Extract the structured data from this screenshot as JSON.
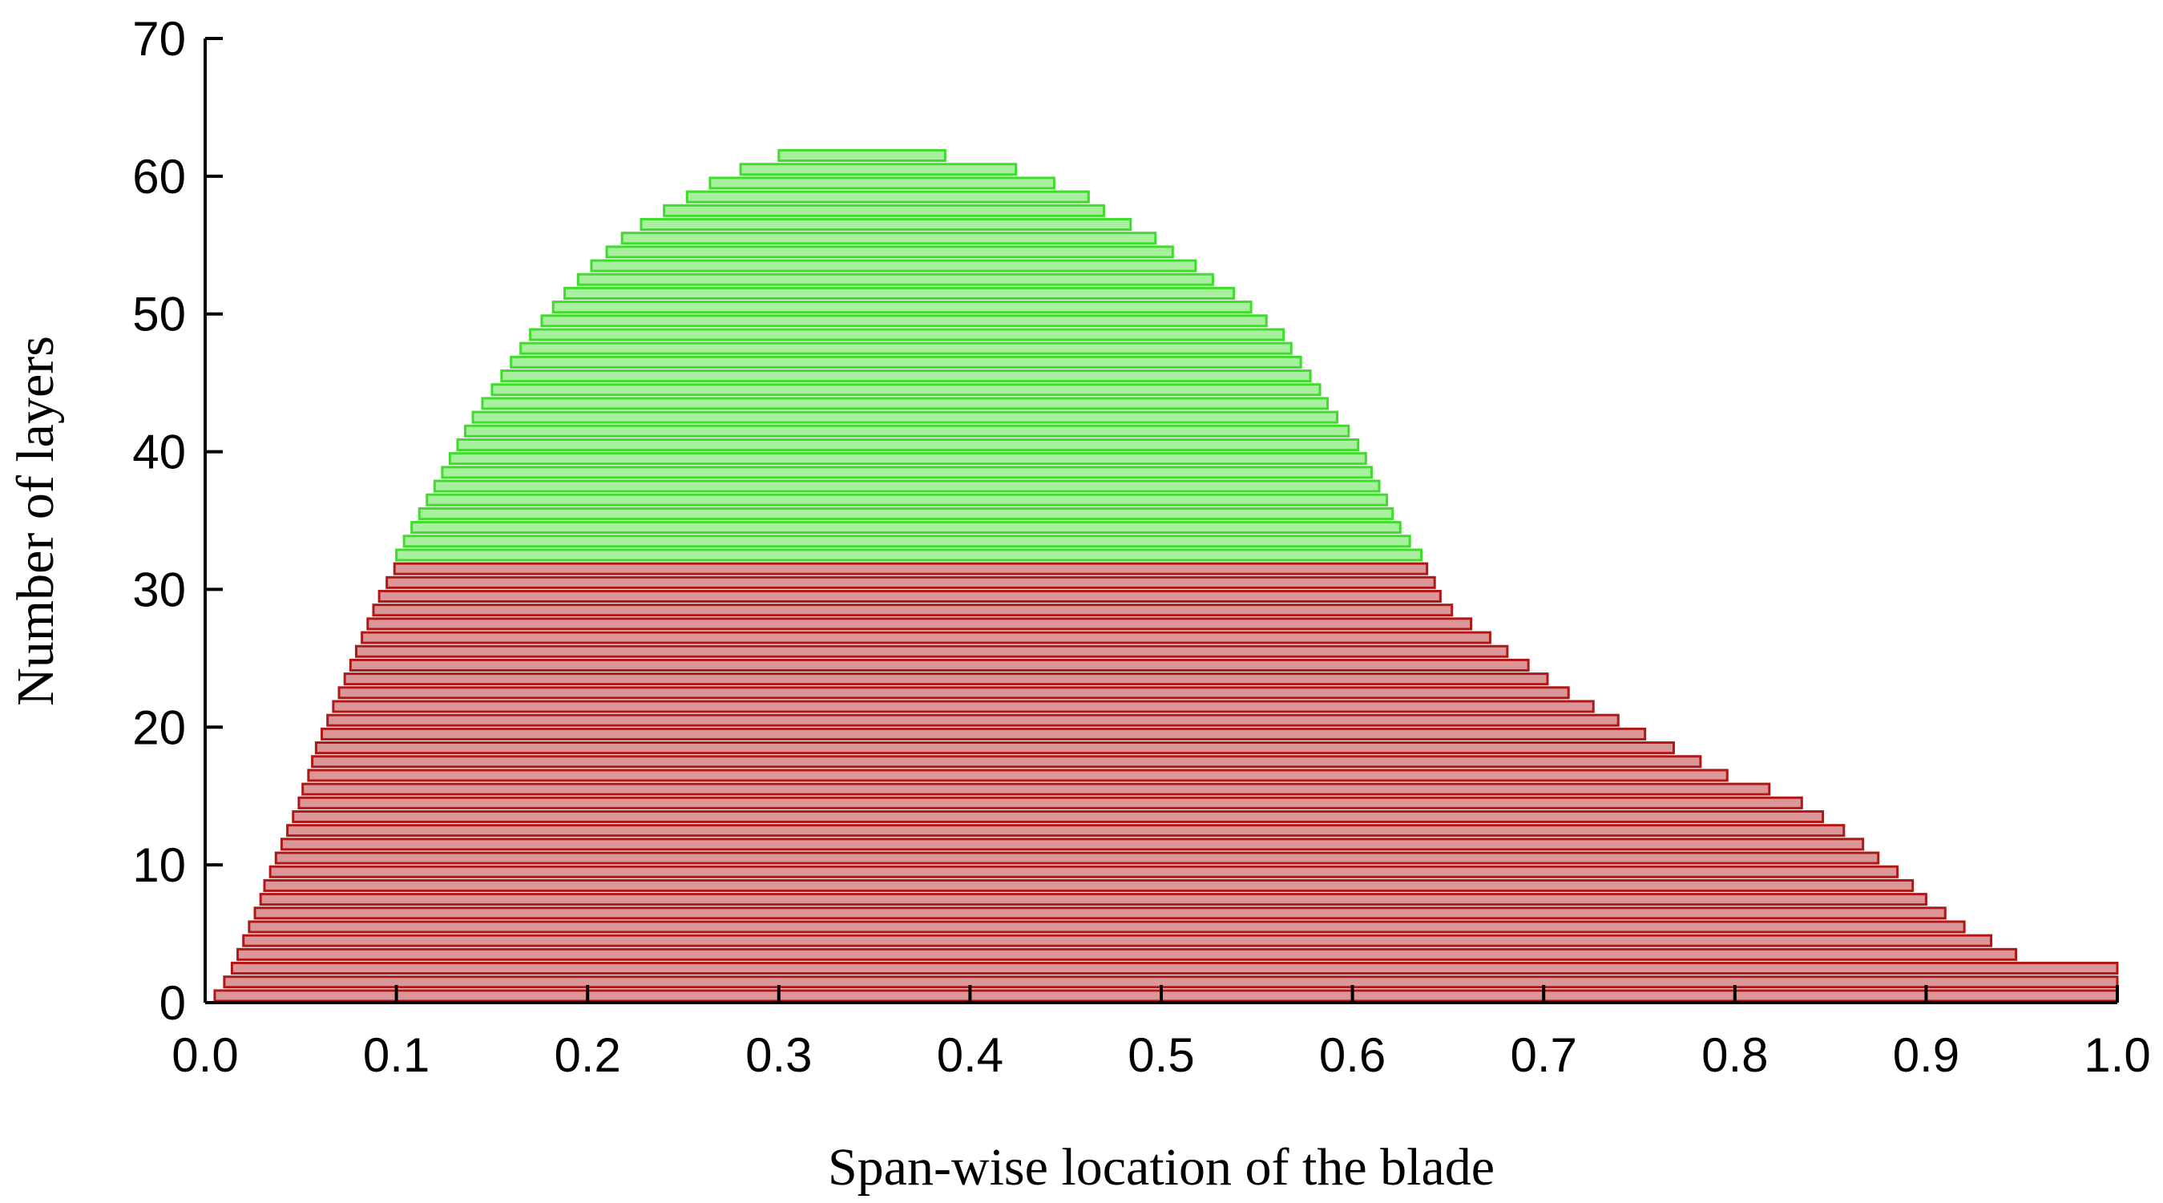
{
  "chart_data": {
    "type": "layer-range",
    "xlabel": "Span-wise location of the blade",
    "ylabel": "Number of layers",
    "xlim": [
      0,
      1
    ],
    "ylim": [
      0,
      70
    ],
    "xticks": [
      {
        "value": 0,
        "label": "0.0"
      },
      0.1,
      0.2,
      0.3,
      0.4,
      0.5,
      0.6,
      0.7,
      0.8,
      0.9,
      {
        "value": 1,
        "label": "1.0"
      }
    ],
    "yticks": [
      0,
      10,
      20,
      30,
      40,
      50,
      60,
      70
    ],
    "groups": [
      {
        "color": "#b01818",
        "layers": [
          1,
          2,
          3,
          4,
          5,
          6,
          7,
          8,
          9,
          10,
          11,
          12,
          13,
          14,
          15,
          16,
          17,
          18,
          19,
          20,
          21,
          22,
          23,
          24,
          25,
          26,
          27,
          28,
          29,
          30,
          31,
          32
        ],
        "start": [
          0.005,
          0.01,
          0.014,
          0.017,
          0.02,
          0.023,
          0.026,
          0.029,
          0.031,
          0.034,
          0.037,
          0.04,
          0.043,
          0.046,
          0.049,
          0.051,
          0.054,
          0.056,
          0.058,
          0.061,
          0.064,
          0.067,
          0.07,
          0.073,
          0.076,
          0.079,
          0.082,
          0.085,
          0.088,
          0.091,
          0.095,
          0.099
        ],
        "end": [
          1.0,
          1.0,
          1.0,
          0.947,
          0.934,
          0.92,
          0.91,
          0.9,
          0.893,
          0.885,
          0.875,
          0.867,
          0.857,
          0.846,
          0.835,
          0.818,
          0.796,
          0.782,
          0.768,
          0.753,
          0.739,
          0.726,
          0.713,
          0.702,
          0.692,
          0.681,
          0.672,
          0.662,
          0.652,
          0.646,
          0.643,
          0.639
        ]
      },
      {
        "color": "#3fdc2c",
        "layers": [
          33,
          34,
          35,
          36,
          37,
          38,
          39,
          40,
          41,
          42,
          43,
          44,
          45,
          46,
          47,
          48,
          49,
          50,
          51,
          52,
          53,
          54,
          55,
          56,
          57,
          58,
          59,
          60,
          61,
          62
        ],
        "start": [
          0.1,
          0.104,
          0.108,
          0.112,
          0.116,
          0.12,
          0.124,
          0.128,
          0.132,
          0.136,
          0.14,
          0.145,
          0.15,
          0.155,
          0.16,
          0.165,
          0.17,
          0.176,
          0.182,
          0.188,
          0.195,
          0.202,
          0.21,
          0.218,
          0.228,
          0.24,
          0.252,
          0.264,
          0.28,
          0.3
        ],
        "end": [
          0.636,
          0.63,
          0.625,
          0.621,
          0.618,
          0.614,
          0.61,
          0.607,
          0.603,
          0.598,
          0.592,
          0.587,
          0.583,
          0.578,
          0.573,
          0.568,
          0.564,
          0.555,
          0.547,
          0.538,
          0.527,
          0.518,
          0.506,
          0.497,
          0.484,
          0.47,
          0.462,
          0.444,
          0.424,
          0.387
        ]
      }
    ]
  }
}
